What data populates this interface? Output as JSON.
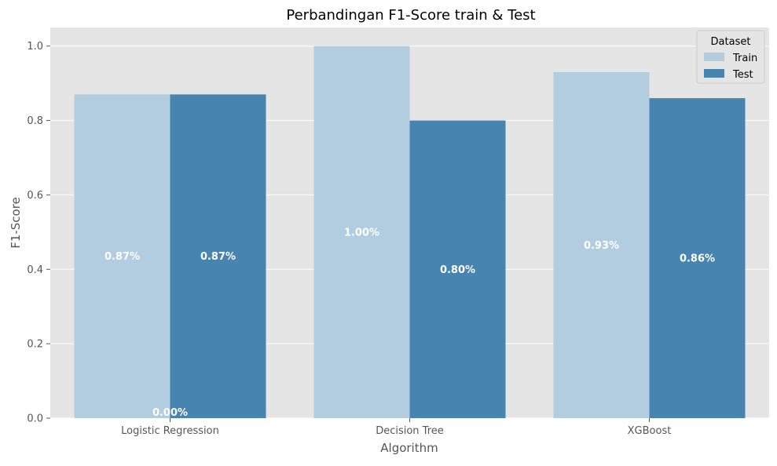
{
  "chart_data": {
    "type": "bar",
    "title": "Perbandingan F1-Score train & Test",
    "xlabel": "Algorithm",
    "ylabel": "F1-Score",
    "categories": [
      "Logistic Regression",
      "Decision Tree",
      "XGBoost"
    ],
    "series": [
      {
        "name": "Train",
        "values": [
          0.87,
          1.0,
          0.93
        ],
        "color": "#b2cde0"
      },
      {
        "name": "Test",
        "values": [
          0.87,
          0.8,
          0.86
        ],
        "color": "#4884b0"
      }
    ],
    "bar_labels": {
      "Train": [
        "0.87%",
        "1.00%",
        "0.93%"
      ],
      "Test": [
        "0.87%",
        "0.80%",
        "0.86%"
      ]
    },
    "extra_labels": [
      {
        "text": "0.00%",
        "category": "Logistic Regression",
        "y": 0.0
      }
    ],
    "ylim": [
      0,
      1.05
    ],
    "yticks": [
      0.0,
      0.2,
      0.4,
      0.6,
      0.8,
      1.0
    ],
    "ytick_labels": [
      "0.0",
      "0.2",
      "0.4",
      "0.6",
      "0.8",
      "1.0"
    ],
    "grid": true,
    "background": "#e5e5e5",
    "legend": {
      "title": "Dataset",
      "entries": [
        "Train",
        "Test"
      ],
      "placement": "top-right"
    }
  }
}
